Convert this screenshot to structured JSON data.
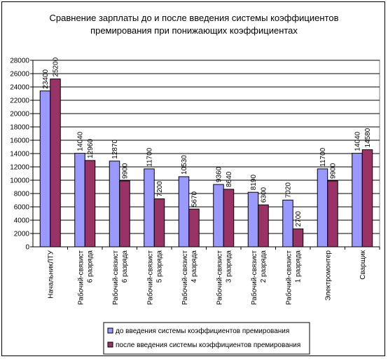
{
  "chart_data": {
    "type": "bar",
    "title_lines": [
      "Сравнение зарплаты до и после введения системы коэффициентов",
      "премирования при понижающих коэффициентах"
    ],
    "categories": [
      [
        "НачальникЛТУ"
      ],
      [
        "Рабочий-связист",
        "6 разряда"
      ],
      [
        "Рабочий-связист",
        "6 разряда"
      ],
      [
        "Рабочий-связист",
        "5 разряда"
      ],
      [
        "Рабочий-связист",
        "4 разряда"
      ],
      [
        "Рабочий-связист",
        "3 разряда"
      ],
      [
        "Рабочий-связист",
        "2 разряда"
      ],
      [
        "Рабочий-связист",
        "1 разряда"
      ],
      [
        "Электромонтер"
      ],
      [
        "Сварщик"
      ]
    ],
    "series": [
      {
        "name": "до введения системы коэффициентов премирования",
        "color": "#9999ff",
        "values": [
          23400,
          14040,
          12870,
          11700,
          10530,
          9360,
          8190,
          7020,
          11700,
          14040
        ]
      },
      {
        "name": "после введения системы коэффициентов премирования",
        "color": "#993366",
        "values": [
          25200,
          12960,
          9900,
          7200,
          5670,
          8640,
          6300,
          2700,
          9900,
          14580
        ]
      }
    ],
    "ylim": [
      0,
      28000
    ],
    "yticks": [
      0,
      2000,
      4000,
      6000,
      8000,
      10000,
      12000,
      14000,
      16000,
      18000,
      20000,
      22000,
      24000,
      26000,
      28000
    ],
    "grid": true,
    "legend_position": "bottom"
  }
}
